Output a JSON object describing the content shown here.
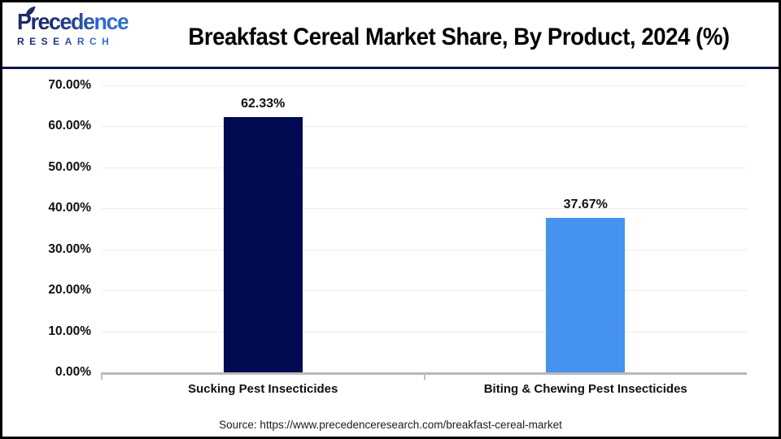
{
  "header": {
    "logo": {
      "wordmark": "Precedence",
      "subtext": "RESEARCH"
    },
    "title": "Breakfast Cereal Market Share, By Product, 2024 (%)"
  },
  "chart_data": {
    "type": "bar",
    "title": "Breakfast Cereal Market Share, By Product, 2024 (%)",
    "categories": [
      "Sucking Pest Insecticides",
      "Biting & Chewing Pest Insecticides"
    ],
    "values": [
      62.33,
      37.67
    ],
    "data_labels": [
      "62.33%",
      "37.67%"
    ],
    "bar_colors": [
      "#020a52",
      "#4593ef"
    ],
    "ylim": [
      0,
      70
    ],
    "yticks": [
      {
        "value": 0,
        "label": "0.00%"
      },
      {
        "value": 10,
        "label": "10.00%"
      },
      {
        "value": 20,
        "label": "20.00%"
      },
      {
        "value": 30,
        "label": "30.00%"
      },
      {
        "value": 40,
        "label": "40.00%"
      },
      {
        "value": 50,
        "label": "50.00%"
      },
      {
        "value": 60,
        "label": "60.00%"
      },
      {
        "value": 70,
        "label": "70.00%"
      }
    ],
    "xlabel": "",
    "ylabel": "",
    "grid": "horizontal",
    "legend": "none"
  },
  "footer": {
    "source": "Source: https://www.precedenceresearch.com/breakfast-cereal-market"
  },
  "colors": {
    "bar_navy": "#020a52",
    "bar_blue": "#4593ef",
    "header_divider": "#10174d",
    "axis_line": "#b9b9b9",
    "axis_tick": "#c0c0c0",
    "gridline": "#ececec",
    "logo_navy": "#1e2b6e",
    "logo_blue": "#2f6fd0",
    "title_text": "#000000",
    "page_border": "#000000"
  }
}
